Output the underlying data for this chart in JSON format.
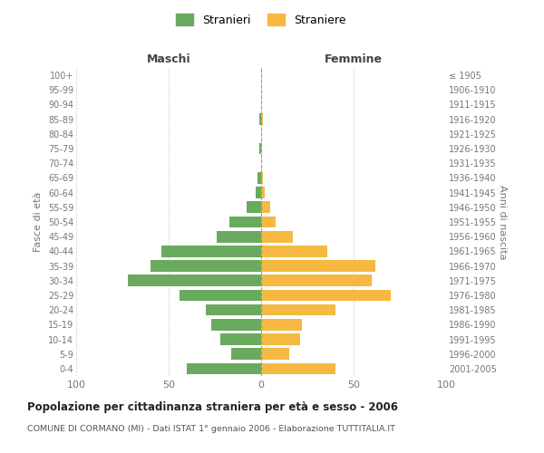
{
  "age_groups": [
    "0-4",
    "5-9",
    "10-14",
    "15-19",
    "20-24",
    "25-29",
    "30-34",
    "35-39",
    "40-44",
    "45-49",
    "50-54",
    "55-59",
    "60-64",
    "65-69",
    "70-74",
    "75-79",
    "80-84",
    "85-89",
    "90-94",
    "95-99",
    "100+"
  ],
  "birth_years": [
    "2001-2005",
    "1996-2000",
    "1991-1995",
    "1986-1990",
    "1981-1985",
    "1976-1980",
    "1971-1975",
    "1966-1970",
    "1961-1965",
    "1956-1960",
    "1951-1955",
    "1946-1950",
    "1941-1945",
    "1936-1940",
    "1931-1935",
    "1926-1930",
    "1921-1925",
    "1916-1920",
    "1911-1915",
    "1906-1910",
    "≤ 1905"
  ],
  "males": [
    40,
    16,
    22,
    27,
    30,
    44,
    72,
    60,
    54,
    24,
    17,
    8,
    3,
    2,
    0,
    1,
    0,
    1,
    0,
    0,
    0
  ],
  "females": [
    40,
    15,
    21,
    22,
    40,
    70,
    60,
    62,
    36,
    17,
    8,
    5,
    2,
    1,
    0,
    0,
    0,
    1,
    0,
    0,
    0
  ],
  "male_color": "#6aaa5e",
  "female_color": "#f5b942",
  "title_main": "Popolazione per cittadinanza straniera per età e sesso - 2006",
  "title_sub": "COMUNE DI CORMANO (MI) - Dati ISTAT 1° gennaio 2006 - Elaborazione TUTTITALIA.IT",
  "xlabel_left": "Maschi",
  "xlabel_right": "Femmine",
  "ylabel_left": "Fasce di età",
  "ylabel_right": "Anni di nascita",
  "legend_male": "Stranieri",
  "legend_female": "Straniere",
  "xlim": 100,
  "bg_color": "#ffffff",
  "grid_color": "#cccccc"
}
